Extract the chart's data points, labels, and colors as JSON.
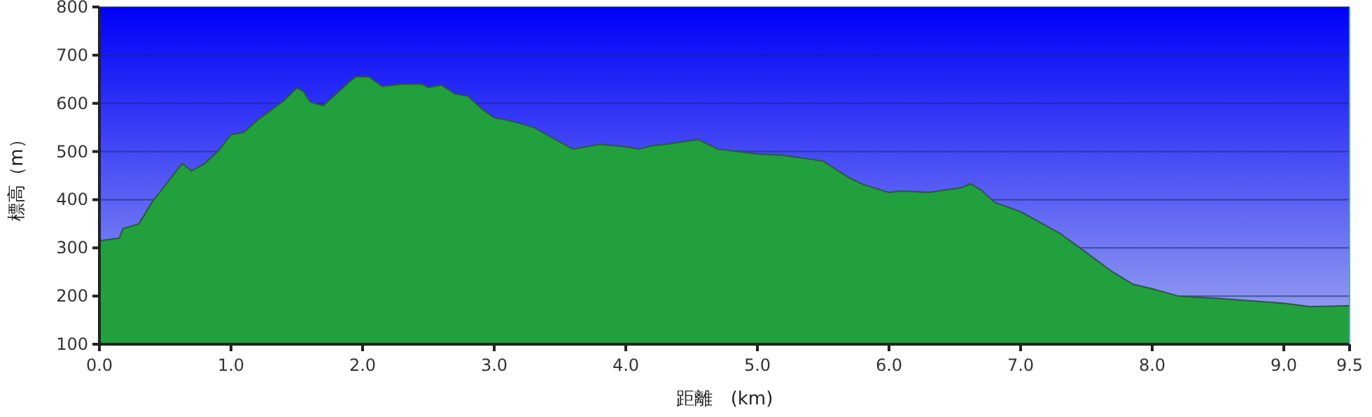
{
  "chart_data": {
    "type": "area",
    "xlabel": "距離　(km)",
    "ylabel": "標高（m）",
    "x": [
      0.0,
      0.15,
      0.18,
      0.3,
      0.4,
      0.5,
      0.6,
      0.63,
      0.7,
      0.8,
      0.9,
      1.0,
      1.1,
      1.2,
      1.3,
      1.4,
      1.5,
      1.55,
      1.6,
      1.7,
      1.8,
      1.9,
      1.95,
      2.05,
      2.15,
      2.3,
      2.45,
      2.5,
      2.6,
      2.7,
      2.8,
      2.9,
      3.0,
      3.1,
      3.2,
      3.3,
      3.5,
      3.6,
      3.8,
      4.0,
      4.1,
      4.2,
      4.3,
      4.55,
      4.7,
      5.0,
      5.2,
      5.5,
      5.7,
      5.8,
      6.0,
      6.1,
      6.3,
      6.55,
      6.62,
      6.7,
      6.8,
      7.0,
      7.3,
      7.5,
      7.7,
      7.85,
      8.0,
      8.2,
      8.5,
      9.0,
      9.2,
      9.5
    ],
    "series": [
      {
        "color": "#22a03e",
        "values": [
          315,
          320,
          340,
          350,
          395,
          430,
          465,
          475,
          460,
          475,
          500,
          535,
          540,
          565,
          585,
          605,
          632,
          625,
          603,
          595,
          620,
          645,
          655,
          655,
          635,
          640,
          640,
          633,
          638,
          620,
          615,
          590,
          570,
          565,
          558,
          550,
          520,
          505,
          515,
          510,
          505,
          512,
          515,
          525,
          505,
          495,
          492,
          480,
          445,
          432,
          415,
          418,
          415,
          425,
          433,
          420,
          395,
          375,
          330,
          290,
          250,
          225,
          215,
          200,
          195,
          185,
          178,
          180
        ]
      }
    ],
    "xlim": [
      0,
      9.5
    ],
    "xticks": [
      {
        "value": 0,
        "label": "0.0"
      },
      {
        "value": 1,
        "label": "1.0"
      },
      {
        "value": 2,
        "label": "2.0"
      },
      {
        "value": 3,
        "label": "3.0"
      },
      {
        "value": 4,
        "label": "4.0"
      },
      {
        "value": 5,
        "label": "5.0"
      },
      {
        "value": 6,
        "label": "6.0"
      },
      {
        "value": 7,
        "label": "7.0"
      },
      {
        "value": 8,
        "label": "8.0"
      },
      {
        "value": 9,
        "label": "9.0"
      },
      {
        "value": 9.5,
        "label": "9.5"
      }
    ],
    "ylim": [
      100,
      800
    ],
    "yticks": [
      100,
      200,
      300,
      400,
      500,
      600,
      700,
      800
    ],
    "grid": "y"
  }
}
